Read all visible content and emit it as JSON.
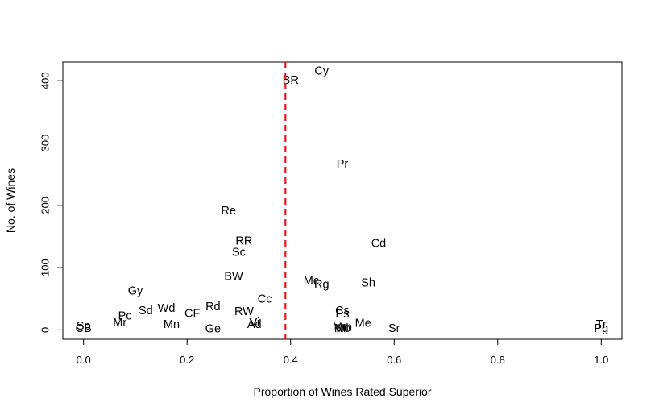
{
  "chart_data": {
    "type": "scatter",
    "title": "",
    "xlabel": "Proportion of Wines Rated Superior",
    "ylabel": "No. of Wines",
    "xlim": [
      -0.04,
      1.04
    ],
    "ylim": [
      -15,
      430
    ],
    "x_ticks": [
      0.0,
      0.2,
      0.4,
      0.6,
      0.8,
      1.0
    ],
    "x_tick_labels": [
      "0.0",
      "0.2",
      "0.4",
      "0.6",
      "0.8",
      "1.0"
    ],
    "y_ticks": [
      0,
      100,
      200,
      300,
      400
    ],
    "y_tick_labels": [
      "0",
      "100",
      "200",
      "300",
      "400"
    ],
    "grid": false,
    "reference_line": {
      "orientation": "vertical",
      "x": 0.39,
      "style": "dashed",
      "color": "#e31a1c"
    },
    "points": [
      {
        "label": "Cy",
        "x": 0.46,
        "y": 415
      },
      {
        "label": "BR",
        "x": 0.4,
        "y": 400
      },
      {
        "label": "Pr",
        "x": 0.5,
        "y": 266
      },
      {
        "label": "Re",
        "x": 0.28,
        "y": 191
      },
      {
        "label": "RR",
        "x": 0.31,
        "y": 142
      },
      {
        "label": "Cd",
        "x": 0.57,
        "y": 138
      },
      {
        "label": "Sc",
        "x": 0.3,
        "y": 124
      },
      {
        "label": "BW",
        "x": 0.29,
        "y": 85
      },
      {
        "label": "Mc",
        "x": 0.44,
        "y": 78
      },
      {
        "label": "Rg",
        "x": 0.46,
        "y": 72
      },
      {
        "label": "Sh",
        "x": 0.55,
        "y": 75
      },
      {
        "label": "Gy",
        "x": 0.1,
        "y": 62
      },
      {
        "label": "Cc",
        "x": 0.35,
        "y": 49
      },
      {
        "label": "Rd",
        "x": 0.25,
        "y": 37
      },
      {
        "label": "Wd",
        "x": 0.16,
        "y": 34
      },
      {
        "label": "Sd",
        "x": 0.12,
        "y": 30
      },
      {
        "label": "RW",
        "x": 0.31,
        "y": 29
      },
      {
        "label": "Cs",
        "x": 0.5,
        "y": 30
      },
      {
        "label": "Ps",
        "x": 0.5,
        "y": 25
      },
      {
        "label": "CF",
        "x": 0.21,
        "y": 26
      },
      {
        "label": "Pc",
        "x": 0.08,
        "y": 22
      },
      {
        "label": "Mr",
        "x": 0.07,
        "y": 11
      },
      {
        "label": "Mn",
        "x": 0.17,
        "y": 8
      },
      {
        "label": "Vi",
        "x": 0.33,
        "y": 11
      },
      {
        "label": "Ad",
        "x": 0.33,
        "y": 8
      },
      {
        "label": "Me",
        "x": 0.54,
        "y": 10
      },
      {
        "label": "Mm",
        "x": 0.5,
        "y": 4
      },
      {
        "label": "Ml",
        "x": 0.5,
        "y": 2
      },
      {
        "label": "Mo",
        "x": 0.5,
        "y": 2
      },
      {
        "label": "Sp",
        "x": 0.0,
        "y": 6
      },
      {
        "label": "CB",
        "x": 0.0,
        "y": 2
      },
      {
        "label": "Ge",
        "x": 0.25,
        "y": 1
      },
      {
        "label": "Sr",
        "x": 0.6,
        "y": 2
      },
      {
        "label": "Tr",
        "x": 1.0,
        "y": 8
      },
      {
        "label": "Pg",
        "x": 1.0,
        "y": 2
      }
    ]
  }
}
